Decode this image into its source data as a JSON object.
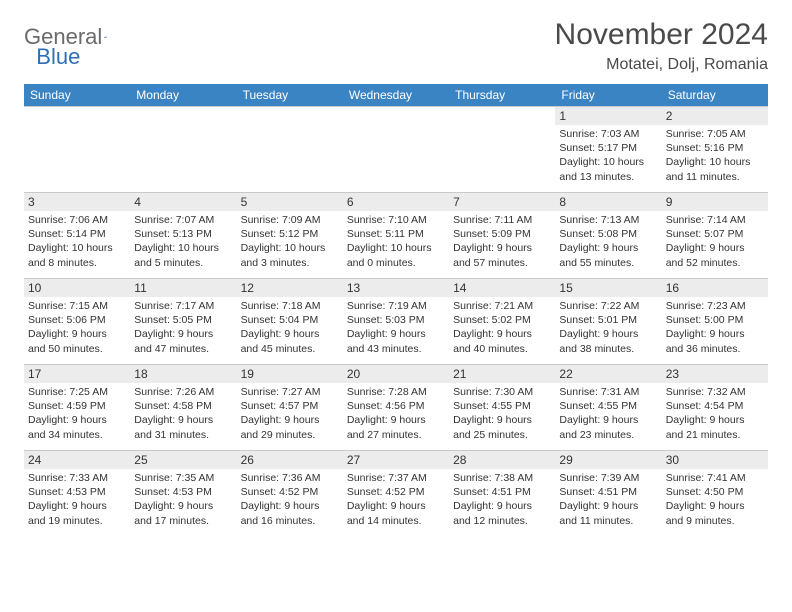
{
  "brand": {
    "text1": "General",
    "text2": "Blue",
    "accent": "#2f6fb3",
    "gray": "#6b6b6b"
  },
  "title": "November 2024",
  "location": "Motatei, Dolj, Romania",
  "header_bg": "#3b84c4",
  "weekdays": [
    "Sunday",
    "Monday",
    "Tuesday",
    "Wednesday",
    "Thursday",
    "Friday",
    "Saturday"
  ],
  "rows": [
    [
      {
        "n": "",
        "sr": "",
        "ss": "",
        "dl": ""
      },
      {
        "n": "",
        "sr": "",
        "ss": "",
        "dl": ""
      },
      {
        "n": "",
        "sr": "",
        "ss": "",
        "dl": ""
      },
      {
        "n": "",
        "sr": "",
        "ss": "",
        "dl": ""
      },
      {
        "n": "",
        "sr": "",
        "ss": "",
        "dl": ""
      },
      {
        "n": "1",
        "sr": "Sunrise: 7:03 AM",
        "ss": "Sunset: 5:17 PM",
        "dl": "Daylight: 10 hours and 13 minutes."
      },
      {
        "n": "2",
        "sr": "Sunrise: 7:05 AM",
        "ss": "Sunset: 5:16 PM",
        "dl": "Daylight: 10 hours and 11 minutes."
      }
    ],
    [
      {
        "n": "3",
        "sr": "Sunrise: 7:06 AM",
        "ss": "Sunset: 5:14 PM",
        "dl": "Daylight: 10 hours and 8 minutes."
      },
      {
        "n": "4",
        "sr": "Sunrise: 7:07 AM",
        "ss": "Sunset: 5:13 PM",
        "dl": "Daylight: 10 hours and 5 minutes."
      },
      {
        "n": "5",
        "sr": "Sunrise: 7:09 AM",
        "ss": "Sunset: 5:12 PM",
        "dl": "Daylight: 10 hours and 3 minutes."
      },
      {
        "n": "6",
        "sr": "Sunrise: 7:10 AM",
        "ss": "Sunset: 5:11 PM",
        "dl": "Daylight: 10 hours and 0 minutes."
      },
      {
        "n": "7",
        "sr": "Sunrise: 7:11 AM",
        "ss": "Sunset: 5:09 PM",
        "dl": "Daylight: 9 hours and 57 minutes."
      },
      {
        "n": "8",
        "sr": "Sunrise: 7:13 AM",
        "ss": "Sunset: 5:08 PM",
        "dl": "Daylight: 9 hours and 55 minutes."
      },
      {
        "n": "9",
        "sr": "Sunrise: 7:14 AM",
        "ss": "Sunset: 5:07 PM",
        "dl": "Daylight: 9 hours and 52 minutes."
      }
    ],
    [
      {
        "n": "10",
        "sr": "Sunrise: 7:15 AM",
        "ss": "Sunset: 5:06 PM",
        "dl": "Daylight: 9 hours and 50 minutes."
      },
      {
        "n": "11",
        "sr": "Sunrise: 7:17 AM",
        "ss": "Sunset: 5:05 PM",
        "dl": "Daylight: 9 hours and 47 minutes."
      },
      {
        "n": "12",
        "sr": "Sunrise: 7:18 AM",
        "ss": "Sunset: 5:04 PM",
        "dl": "Daylight: 9 hours and 45 minutes."
      },
      {
        "n": "13",
        "sr": "Sunrise: 7:19 AM",
        "ss": "Sunset: 5:03 PM",
        "dl": "Daylight: 9 hours and 43 minutes."
      },
      {
        "n": "14",
        "sr": "Sunrise: 7:21 AM",
        "ss": "Sunset: 5:02 PM",
        "dl": "Daylight: 9 hours and 40 minutes."
      },
      {
        "n": "15",
        "sr": "Sunrise: 7:22 AM",
        "ss": "Sunset: 5:01 PM",
        "dl": "Daylight: 9 hours and 38 minutes."
      },
      {
        "n": "16",
        "sr": "Sunrise: 7:23 AM",
        "ss": "Sunset: 5:00 PM",
        "dl": "Daylight: 9 hours and 36 minutes."
      }
    ],
    [
      {
        "n": "17",
        "sr": "Sunrise: 7:25 AM",
        "ss": "Sunset: 4:59 PM",
        "dl": "Daylight: 9 hours and 34 minutes."
      },
      {
        "n": "18",
        "sr": "Sunrise: 7:26 AM",
        "ss": "Sunset: 4:58 PM",
        "dl": "Daylight: 9 hours and 31 minutes."
      },
      {
        "n": "19",
        "sr": "Sunrise: 7:27 AM",
        "ss": "Sunset: 4:57 PM",
        "dl": "Daylight: 9 hours and 29 minutes."
      },
      {
        "n": "20",
        "sr": "Sunrise: 7:28 AM",
        "ss": "Sunset: 4:56 PM",
        "dl": "Daylight: 9 hours and 27 minutes."
      },
      {
        "n": "21",
        "sr": "Sunrise: 7:30 AM",
        "ss": "Sunset: 4:55 PM",
        "dl": "Daylight: 9 hours and 25 minutes."
      },
      {
        "n": "22",
        "sr": "Sunrise: 7:31 AM",
        "ss": "Sunset: 4:55 PM",
        "dl": "Daylight: 9 hours and 23 minutes."
      },
      {
        "n": "23",
        "sr": "Sunrise: 7:32 AM",
        "ss": "Sunset: 4:54 PM",
        "dl": "Daylight: 9 hours and 21 minutes."
      }
    ],
    [
      {
        "n": "24",
        "sr": "Sunrise: 7:33 AM",
        "ss": "Sunset: 4:53 PM",
        "dl": "Daylight: 9 hours and 19 minutes."
      },
      {
        "n": "25",
        "sr": "Sunrise: 7:35 AM",
        "ss": "Sunset: 4:53 PM",
        "dl": "Daylight: 9 hours and 17 minutes."
      },
      {
        "n": "26",
        "sr": "Sunrise: 7:36 AM",
        "ss": "Sunset: 4:52 PM",
        "dl": "Daylight: 9 hours and 16 minutes."
      },
      {
        "n": "27",
        "sr": "Sunrise: 7:37 AM",
        "ss": "Sunset: 4:52 PM",
        "dl": "Daylight: 9 hours and 14 minutes."
      },
      {
        "n": "28",
        "sr": "Sunrise: 7:38 AM",
        "ss": "Sunset: 4:51 PM",
        "dl": "Daylight: 9 hours and 12 minutes."
      },
      {
        "n": "29",
        "sr": "Sunrise: 7:39 AM",
        "ss": "Sunset: 4:51 PM",
        "dl": "Daylight: 9 hours and 11 minutes."
      },
      {
        "n": "30",
        "sr": "Sunrise: 7:41 AM",
        "ss": "Sunset: 4:50 PM",
        "dl": "Daylight: 9 hours and 9 minutes."
      }
    ]
  ]
}
